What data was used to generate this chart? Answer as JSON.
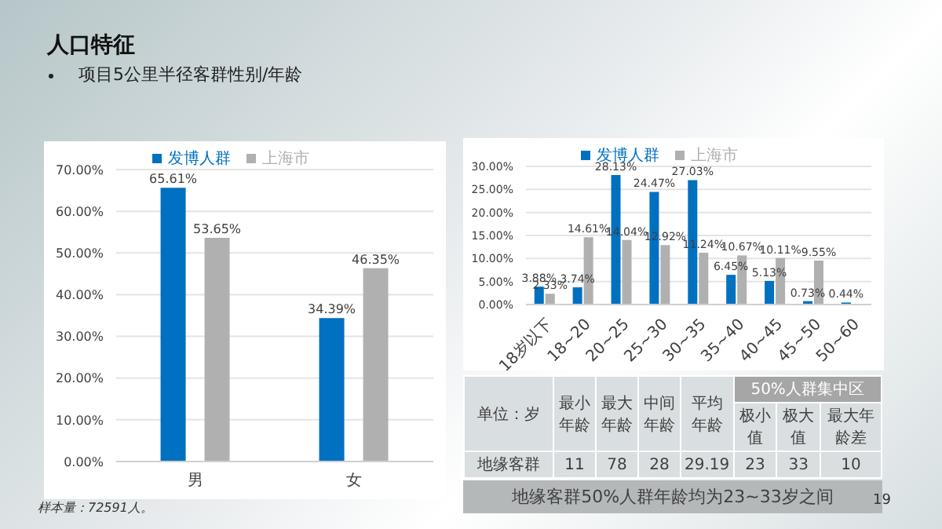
{
  "chart_data": [
    {
      "type": "bar",
      "title": "人口特征",
      "subtitle": "项目5公里半径客群性别/年龄",
      "categories": [
        "男",
        "女"
      ],
      "series": [
        {
          "name": "发博人群",
          "color": "#0070c0",
          "values": [
            65.61,
            34.39
          ],
          "value_labels": [
            "65.61%",
            "34.39%"
          ]
        },
        {
          "name": "上海市",
          "color": "#b0b0b0",
          "values": [
            53.65,
            46.35
          ],
          "value_labels": [
            "53.65%",
            "46.35%"
          ]
        }
      ],
      "ylim": [
        0,
        70
      ],
      "yticks": [
        {
          "value": 0,
          "label": "0.00%"
        },
        {
          "value": 10,
          "label": "10.00%"
        },
        {
          "value": 20,
          "label": "20.00%"
        },
        {
          "value": 30,
          "label": "30.00%"
        },
        {
          "value": 40,
          "label": "40.00%"
        },
        {
          "value": 50,
          "label": "50.00%"
        },
        {
          "value": 60,
          "label": "60.00%"
        },
        {
          "value": 70,
          "label": "70.00%"
        }
      ],
      "grid": "y",
      "legend": "top",
      "annotations": [
        "样本量：72591人。",
        "19"
      ]
    },
    {
      "type": "bar",
      "categories": [
        "18岁以下",
        "18~20",
        "20~25",
        "25~30",
        "30~35",
        "35~40",
        "40~45",
        "45~50",
        "50~60"
      ],
      "series": [
        {
          "name": "发博人群",
          "color": "#0070c0",
          "values": [
            3.88,
            3.74,
            28.13,
            24.47,
            27.03,
            6.45,
            5.13,
            0.73,
            0.44
          ],
          "value_labels": [
            "3.88%",
            "3.74%",
            "28.13%",
            "24.47%",
            "27.03%",
            "6.45%",
            "5.13%",
            "0.73%",
            "0.44%"
          ]
        },
        {
          "name": "上海市",
          "color": "#b0b0b0",
          "values": [
            2.33,
            14.61,
            14.04,
            12.92,
            11.24,
            10.67,
            10.11,
            9.55,
            null
          ],
          "value_labels": [
            "2.33%",
            "14.61%",
            "14.04%",
            "12.92%",
            "11.24%",
            "10.67%",
            "10.11%",
            "9.55%",
            null
          ]
        }
      ],
      "ylim": [
        0,
        30
      ],
      "yticks": [
        {
          "value": 0,
          "label": "0.00%"
        },
        {
          "value": 5,
          "label": "5.00%"
        },
        {
          "value": 10,
          "label": "10.00%"
        },
        {
          "value": 15,
          "label": "15.00%"
        },
        {
          "value": 20,
          "label": "20.00%"
        },
        {
          "value": 25,
          "label": "25.00%"
        },
        {
          "value": 30,
          "label": "30.00%"
        }
      ],
      "grid": "y",
      "legend": "top"
    },
    {
      "type": "other",
      "title": "单位：岁",
      "subtitle": "50%人群集中区",
      "categories": [
        "最小年龄",
        "最大年龄",
        "中间年龄",
        "平均年龄",
        "极小值",
        "极大值",
        "最大年龄差"
      ],
      "y_categories": [
        "地缘客群"
      ],
      "values": [
        11,
        78,
        28,
        29.19,
        23,
        33,
        10
      ],
      "data_labels": true,
      "annotations": [
        "地缘客群50%人群年龄均为23~33岁之间"
      ]
    }
  ]
}
